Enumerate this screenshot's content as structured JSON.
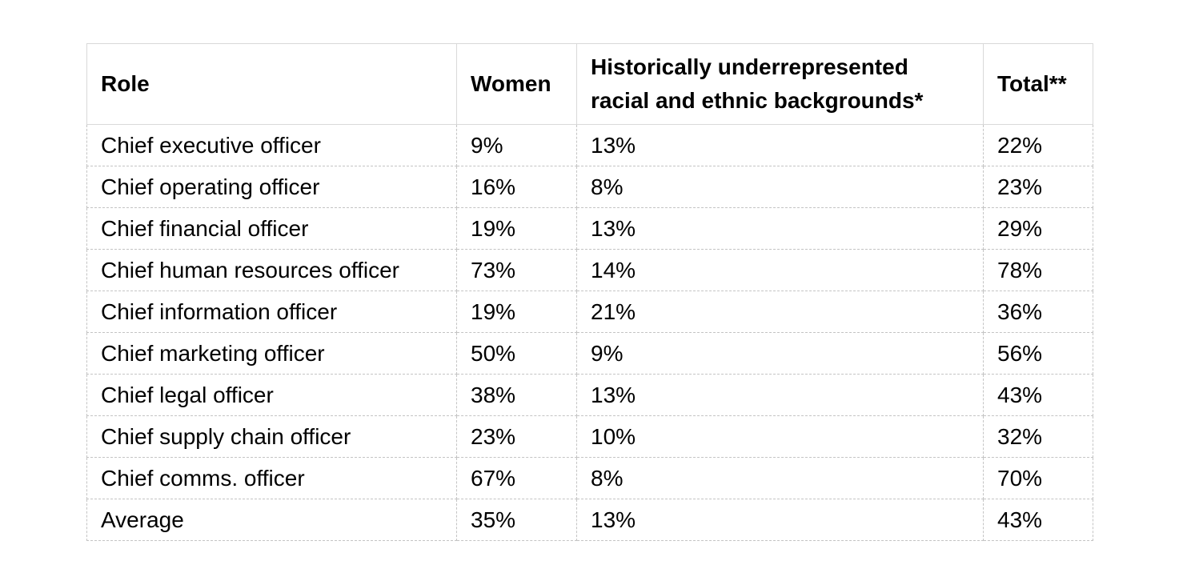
{
  "chart_data": {
    "type": "table",
    "columns": [
      "Role",
      "Women",
      "Historically underrepresented racial and ethnic backgrounds*",
      "Total**"
    ],
    "rows": [
      [
        "Chief executive officer",
        "9%",
        "13%",
        "22%"
      ],
      [
        "Chief operating officer",
        "16%",
        "8%",
        "23%"
      ],
      [
        "Chief financial officer",
        "19%",
        "13%",
        "29%"
      ],
      [
        "Chief human resources officer",
        "73%",
        "14%",
        "78%"
      ],
      [
        "Chief information officer",
        "19%",
        "21%",
        "36%"
      ],
      [
        "Chief marketing officer",
        "50%",
        "9%",
        "56%"
      ],
      [
        "Chief legal officer",
        "38%",
        "13%",
        "43%"
      ],
      [
        "Chief supply chain officer",
        "23%",
        "10%",
        "32%"
      ],
      [
        "Chief comms. officer",
        "67%",
        "8%",
        "70%"
      ],
      [
        "Average",
        "35%",
        "13%",
        "43%"
      ]
    ],
    "layout": {
      "header_border": "solid",
      "body_border": "dashed",
      "border_color_solid": "#d9d9d9",
      "border_color_dashed": "#c4c4c4",
      "text_color": "#000000",
      "background": "#ffffff"
    }
  }
}
